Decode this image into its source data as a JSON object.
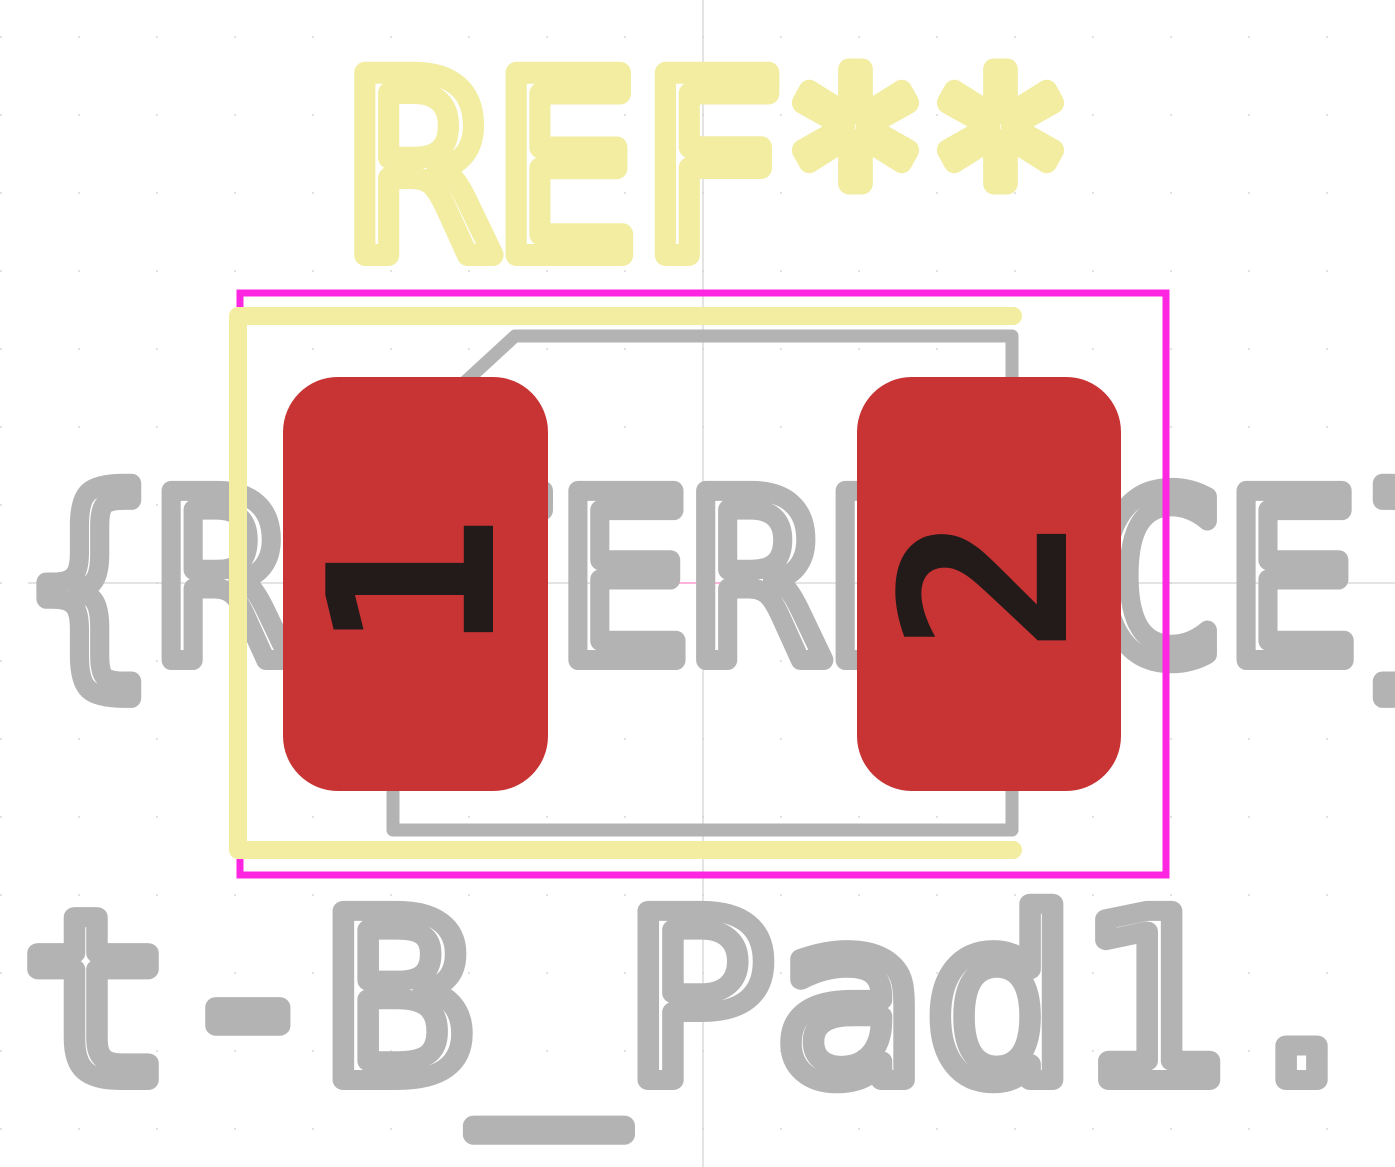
{
  "footprint": {
    "reference": "REF**",
    "value_text_line1": "{REFERENCE}",
    "value_text_line2": "t-B_Pad1.",
    "pads": [
      {
        "number": "1"
      },
      {
        "number": "2"
      }
    ]
  },
  "colors": {
    "background": "#ffffff",
    "grid": "#d8d8d8",
    "crosshair": "#c8c8c8",
    "silkscreen": "#f2eda1",
    "fab_outline": "#b3b3b3",
    "courtyard": "#ff26e2",
    "pad_fill": "#c83434",
    "pad_label": "#231a1a"
  }
}
